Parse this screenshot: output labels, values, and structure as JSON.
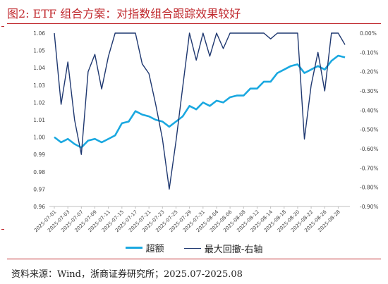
{
  "title": "图2:   ETF 组合方案：对指数组合跟踪效果较好",
  "source": "资料来源：Wind，浙商证券研究所；2025.07-2025.08",
  "colors": {
    "excess": "#1aa8e0",
    "drawdown": "#1f3870",
    "brand": "#c0282d"
  },
  "chart_data": {
    "type": "line",
    "x": [
      "2025-07-01",
      "2025-07-02",
      "2025-07-03",
      "2025-07-04",
      "2025-07-07",
      "2025-07-08",
      "2025-07-09",
      "2025-07-10",
      "2025-07-11",
      "2025-07-14",
      "2025-07-15",
      "2025-07-16",
      "2025-07-17",
      "2025-07-18",
      "2025-07-21",
      "2025-07-22",
      "2025-07-23",
      "2025-07-24",
      "2025-07-25",
      "2025-07-28",
      "2025-07-29",
      "2025-07-30",
      "2025-07-31",
      "2025-08-01",
      "2025-08-04",
      "2025-08-05",
      "2025-08-06",
      "2025-08-07",
      "2025-08-08",
      "2025-08-11",
      "2025-08-12",
      "2025-08-13",
      "2025-08-14",
      "2025-08-15",
      "2025-08-18",
      "2025-08-19",
      "2025-08-20",
      "2025-08-21",
      "2025-08-22",
      "2025-08-25",
      "2025-08-26",
      "2025-08-27",
      "2025-08-28",
      "2025-08-29"
    ],
    "xticks": [
      "2025-07-01",
      "2025-07-03",
      "2025-07-07",
      "2025-07-09",
      "2025-07-11",
      "2025-07-15",
      "2025-07-17",
      "2025-07-21",
      "2025-07-23",
      "2025-07-25",
      "2025-07-29",
      "2025-07-31",
      "2025-08-04",
      "2025-08-06",
      "2025-08-08",
      "2025-08-12",
      "2025-08-14",
      "2025-08-18",
      "2025-08-20",
      "2025-08-22",
      "2025-08-26",
      "2025-08-28"
    ],
    "series": [
      {
        "name": "超额",
        "axis": "left",
        "values": [
          1.0,
          0.997,
          0.999,
          0.996,
          0.994,
          0.998,
          0.999,
          0.997,
          0.999,
          1.001,
          1.008,
          1.009,
          1.015,
          1.013,
          1.012,
          1.01,
          1.009,
          1.006,
          1.009,
          1.012,
          1.018,
          1.016,
          1.02,
          1.018,
          1.021,
          1.02,
          1.023,
          1.024,
          1.024,
          1.028,
          1.028,
          1.032,
          1.032,
          1.037,
          1.039,
          1.041,
          1.042,
          1.037,
          1.039,
          1.041,
          1.039,
          1.044,
          1.047,
          1.046
        ]
      },
      {
        "name": "最大回撤-右轴",
        "axis": "right",
        "values": [
          0.0,
          -0.37,
          -0.15,
          -0.45,
          -0.63,
          -0.2,
          -0.11,
          -0.29,
          -0.12,
          0.0,
          0.0,
          0.0,
          0.0,
          -0.16,
          -0.21,
          -0.37,
          -0.55,
          -0.81,
          -0.56,
          -0.28,
          0.0,
          -0.14,
          0.0,
          -0.12,
          0.0,
          -0.08,
          0.0,
          0.0,
          0.0,
          0.0,
          0.0,
          0.0,
          -0.03,
          0.0,
          0.0,
          0.0,
          0.0,
          -0.55,
          -0.27,
          -0.1,
          -0.3,
          0.0,
          0.0,
          -0.06
        ]
      }
    ],
    "y_left": {
      "min": 0.96,
      "max": 1.06,
      "step": 0.01,
      "ticks": [
        "0.96",
        "0.97",
        "0.98",
        "0.99",
        "1.00",
        "1.01",
        "1.02",
        "1.03",
        "1.04",
        "1.05",
        "1.06"
      ]
    },
    "y_right": {
      "min": -0.9,
      "max": 0.0,
      "step": 0.1,
      "ticks": [
        "-0.90%",
        "-0.80%",
        "-0.70%",
        "-0.60%",
        "-0.50%",
        "-0.40%",
        "-0.30%",
        "-0.20%",
        "-0.10%",
        "0.00%"
      ]
    },
    "legend_position": "bottom",
    "grid": false
  }
}
